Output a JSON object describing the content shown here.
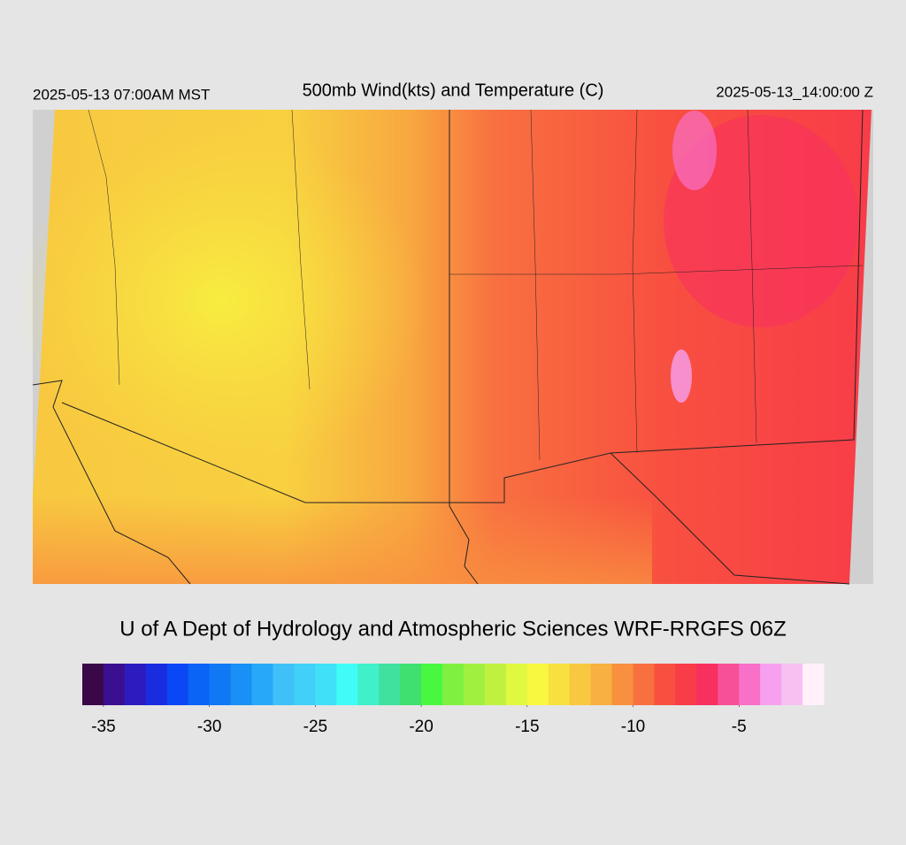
{
  "header": {
    "left_time": "2025-05-13 07:00AM MST",
    "title": "500mb Wind(kts) and Temperature (C)",
    "right_time": "2025-05-13_14:00:00 Z"
  },
  "footer": {
    "credit": "U of A Dept of Hydrology and Atmospheric Sciences WRF-RRGFS 06Z"
  },
  "colorbar": {
    "lim": [
      -36,
      -1
    ],
    "ticks": [
      -35,
      -30,
      -25,
      -20,
      -15,
      -10,
      -5
    ],
    "colors": [
      "#3a0848",
      "#3a1090",
      "#2c1cc0",
      "#1a2ce0",
      "#0a48f5",
      "#0a64f5",
      "#1078f5",
      "#1890f5",
      "#28a8f8",
      "#40c0f8",
      "#40d0f8",
      "#40e0f8",
      "#40fcf8",
      "#40f0c8",
      "#40e0a0",
      "#40e070",
      "#48f840",
      "#80f040",
      "#a0f040",
      "#c0f040",
      "#e0f840",
      "#f8f840",
      "#f8e040",
      "#f8c840",
      "#f8b040",
      "#f89040",
      "#f87040",
      "#f85040",
      "#f83c48",
      "#f83060",
      "#f85098",
      "#f870c8",
      "#f8a0f0",
      "#f8c0f0",
      "#fff0fa"
    ]
  }
}
